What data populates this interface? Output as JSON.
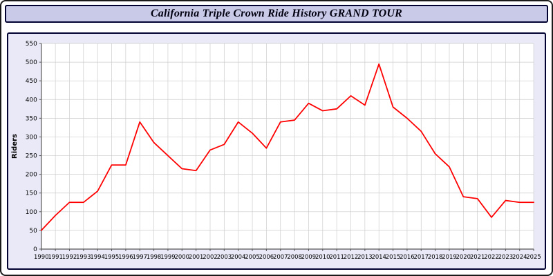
{
  "title": "California Triple Crown Ride History GRAND TOUR",
  "colors": {
    "line": "#ff0000",
    "grid": "#cccccc",
    "axis": "#555555",
    "plot_bg": "#ffffff",
    "panel_bg": "#e9e9f7",
    "title_bg": "#c9c9e8",
    "border": "#000030",
    "tick_text": "#000000"
  },
  "chart_data": {
    "type": "line",
    "title": "California Triple Crown Ride History GRAND TOUR",
    "xlabel": "",
    "ylabel": "Riders",
    "ylim": [
      0,
      550
    ],
    "ytick_step": 50,
    "grid": true,
    "legend_position": "none",
    "x": [
      1990,
      1991,
      1992,
      1993,
      1994,
      1995,
      1996,
      1997,
      1998,
      1999,
      2000,
      2001,
      2002,
      2003,
      2004,
      2005,
      2006,
      2007,
      2008,
      2009,
      2010,
      2011,
      2012,
      2013,
      2014,
      2015,
      2016,
      2017,
      2018,
      2019,
      2020,
      2021,
      2022,
      2023,
      2024,
      2025
    ],
    "series": [
      {
        "name": "Riders",
        "color": "#ff0000",
        "values": [
          50,
          90,
          125,
          125,
          155,
          225,
          225,
          340,
          285,
          250,
          215,
          210,
          265,
          280,
          340,
          310,
          270,
          340,
          345,
          390,
          370,
          375,
          410,
          385,
          495,
          380,
          350,
          315,
          255,
          220,
          140,
          135,
          85,
          130,
          125,
          125
        ]
      }
    ]
  }
}
